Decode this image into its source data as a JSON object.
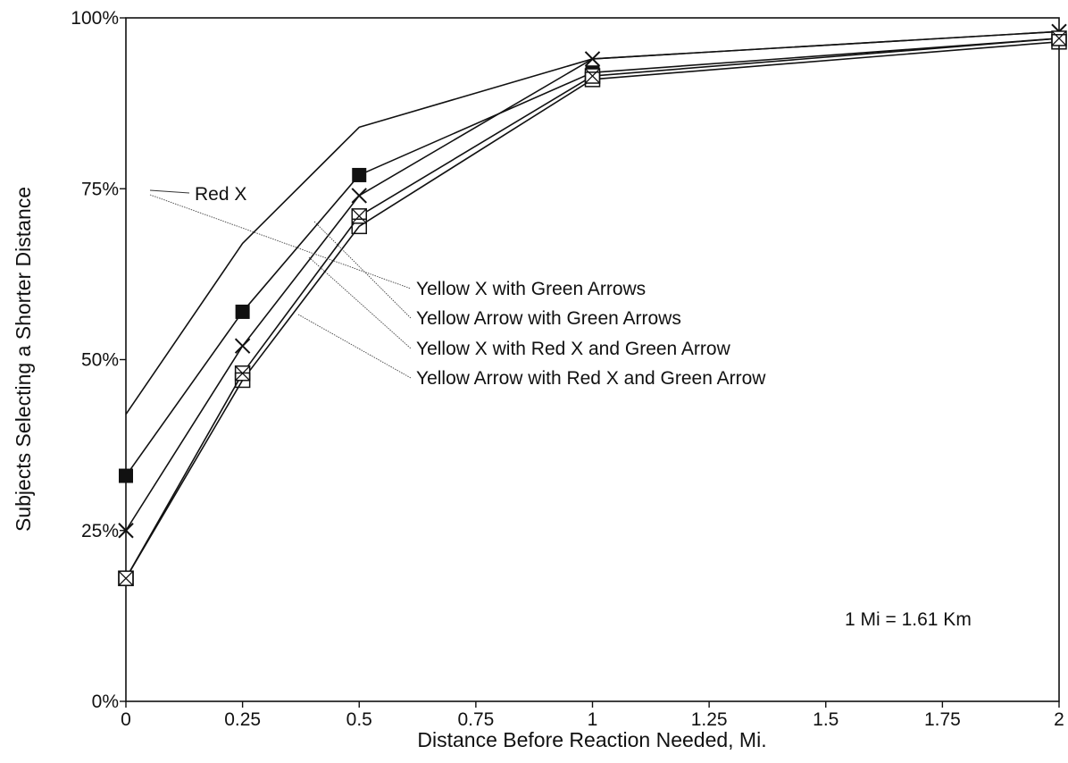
{
  "chart_data": {
    "type": "line",
    "title": "",
    "xlabel": "Distance Before Reaction Needed, Mi.",
    "ylabel": "Subjects Selecting a Shorter Distance",
    "x_ticks": [
      "0",
      "0.25",
      "0.5",
      "0.75",
      "1",
      "1.25",
      "1.5",
      "1.75",
      "2"
    ],
    "y_ticks": [
      "0%",
      "25%",
      "50%",
      "75%",
      "100%"
    ],
    "xlim": [
      0,
      2
    ],
    "ylim": [
      0,
      100
    ],
    "grid": false,
    "x": [
      0,
      0.25,
      0.5,
      1,
      2
    ],
    "series": [
      {
        "name": "Red X",
        "marker": "none",
        "values": [
          42,
          67,
          84,
          94,
          98
        ]
      },
      {
        "name": "Yellow X with Green Arrows",
        "marker": "filled-square",
        "values": [
          33,
          57,
          77,
          92,
          97
        ]
      },
      {
        "name": "Yellow Arrow with Green Arrows",
        "marker": "x",
        "values": [
          25,
          52,
          74,
          94,
          98
        ]
      },
      {
        "name": "Yellow X with Red X and Green Arrow",
        "marker": "boxed-x",
        "values": [
          18,
          48,
          71,
          91.5,
          97
        ]
      },
      {
        "name": "Yellow Arrow with Red X and Green Arrow",
        "marker": "open-square",
        "values": [
          18,
          47,
          69.5,
          91,
          96.5
        ]
      }
    ],
    "annotations": [
      "1 Mi = 1.61 Km"
    ]
  }
}
